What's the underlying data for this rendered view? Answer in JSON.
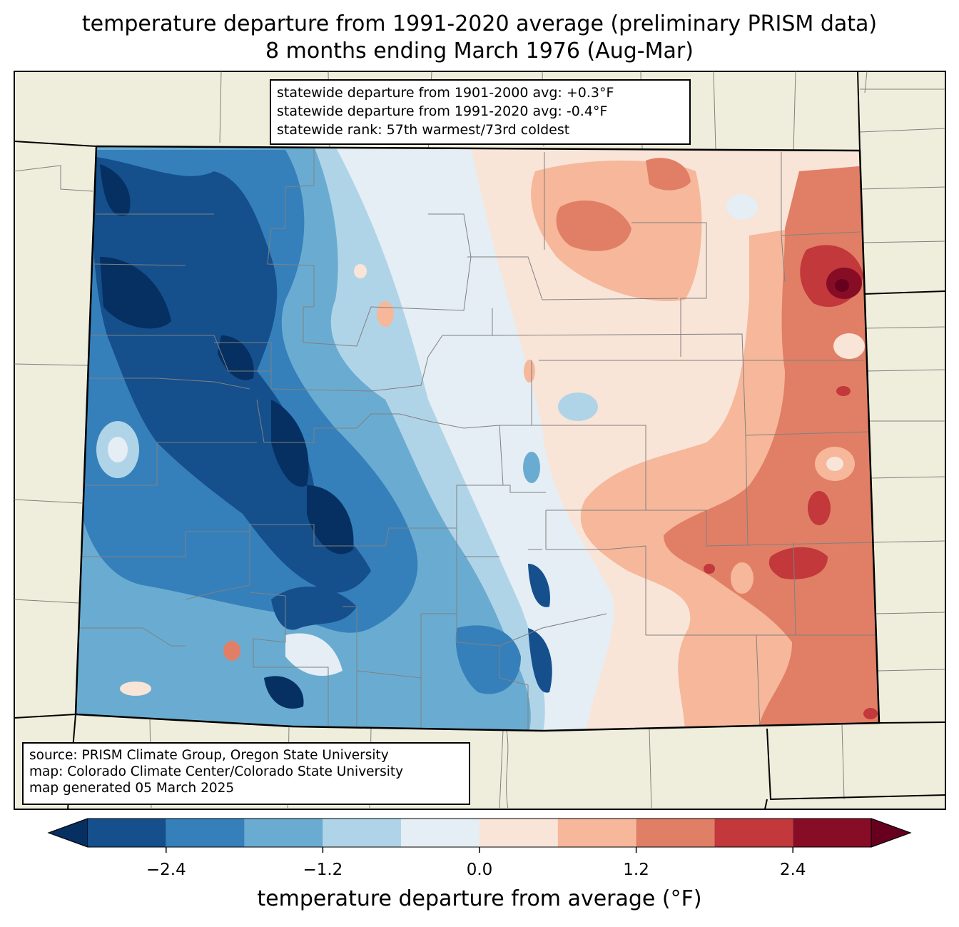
{
  "title": {
    "line1": "temperature departure from 1991-2020 average (preliminary PRISM data)",
    "line2": "8 months ending March 1976 (Aug-Mar)"
  },
  "stats": {
    "line1": "statewide departure from 1901-2000 avg: +0.3°F",
    "line2": "statewide departure from 1991-2020 avg: -0.4°F",
    "line3": "statewide rank: 57th warmest/73rd coldest"
  },
  "source": {
    "line1": "source: PRISM Climate Group, Oregon State University",
    "line2": "map: Colorado Climate Center/Colorado State University",
    "line3": "map generated 05 March 2025"
  },
  "colorbar": {
    "label": "temperature departure from average (°F)",
    "ticks": [
      "−2.4",
      "−1.2",
      "0.0",
      "1.2",
      "2.4"
    ],
    "bounds": [
      -3.0,
      -2.4,
      -1.8,
      -1.2,
      -0.6,
      0.0,
      0.6,
      1.2,
      1.8,
      2.4,
      3.0
    ],
    "under_color": "#053061",
    "over_color": "#67001f",
    "colors": [
      "#154f8c",
      "#3580bb",
      "#6aacd1",
      "#b0d4e7",
      "#e4eef4",
      "#f9e4d8",
      "#f6b79a",
      "#e07f66",
      "#c2383b",
      "#870d26"
    ]
  },
  "colors": {
    "land_background": "#efeedc",
    "state_border": "#000000",
    "county_border": "#808080"
  }
}
